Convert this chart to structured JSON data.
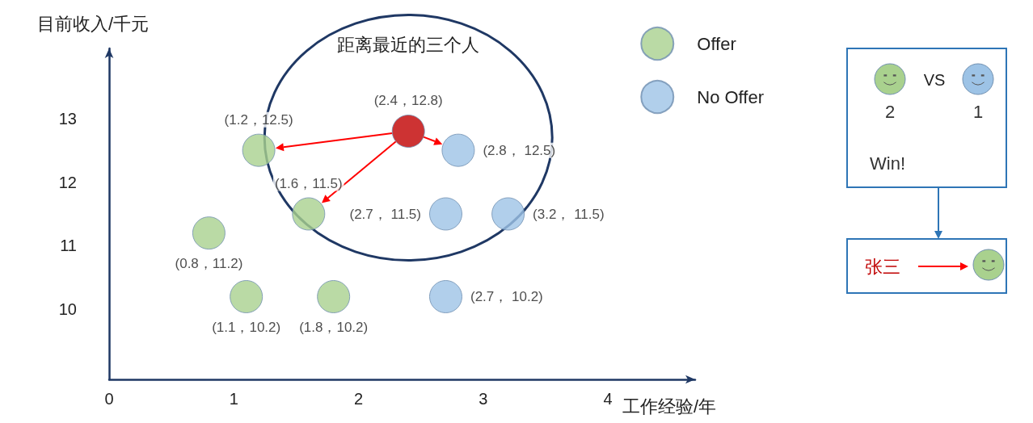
{
  "chart_data": {
    "type": "scatter",
    "xlabel": "工作经验/年",
    "ylabel": "目前收入/千元",
    "xlim": [
      0,
      4.7
    ],
    "ylim": [
      8.9,
      14.1
    ],
    "xticks": [
      0,
      1,
      2,
      3,
      4
    ],
    "yticks": [
      10,
      11,
      12,
      13
    ],
    "grid": false,
    "legend": "top right",
    "marker": "circle",
    "annotations": [
      "距离最近的三个人",
      "VS",
      "2",
      "1",
      "Win!",
      "张三"
    ],
    "series": [
      {
        "name": "Offer",
        "color": "#a9d18e",
        "x": [
          1.2,
          1.6,
          0.8,
          1.1,
          1.8
        ],
        "values": [
          12.5,
          11.5,
          11.2,
          10.2,
          10.2
        ],
        "value_labels": [
          "(1.2，12.5)",
          "(1.6，11.5)",
          "(0.8，11.2)",
          "(1.1，10.2)",
          "(1.8，10.2)"
        ]
      },
      {
        "name": "No Offer",
        "color": "#9dc3e6",
        "x": [
          2.8,
          2.7,
          3.2,
          2.7
        ],
        "values": [
          12.5,
          11.5,
          11.5,
          10.2
        ],
        "value_labels": [
          "(2.8， 12.5)",
          "(2.7， 11.5)",
          "(3.2， 11.5)",
          "(2.7， 10.2)"
        ]
      },
      {
        "color": "#c00000",
        "x": [
          2.4
        ],
        "values": [
          12.8
        ],
        "value_labels": [
          "(2.4，12.8)"
        ]
      }
    ]
  }
}
